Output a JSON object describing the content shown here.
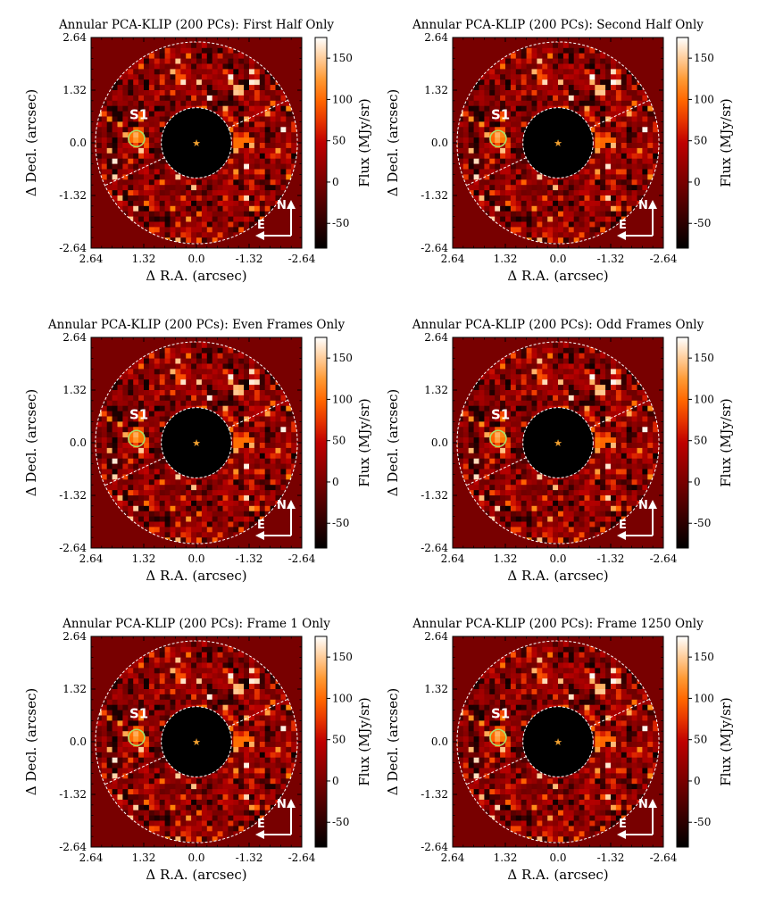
{
  "chart_data": {
    "type": "heatmap",
    "colormap": "gist_heat",
    "xticks": [
      "2.64",
      "1.32",
      "0.0",
      "-1.32",
      "-2.64"
    ],
    "yticks": [
      "2.64",
      "1.32",
      "0.0",
      "-1.32",
      "-2.64"
    ],
    "xlim": [
      2.64,
      -2.64
    ],
    "ylim": [
      -2.64,
      2.64
    ],
    "xlabel": "Δ R.A. (arcsec)",
    "ylabel": "Δ Decl. (arcsec)",
    "colorbar": {
      "label": "Flux (MJy/sr)",
      "range": [
        -80,
        175
      ],
      "ticks": [
        "150",
        "100",
        "50",
        "0",
        "-50"
      ],
      "tick_values": [
        150,
        100,
        50,
        0,
        -50
      ]
    },
    "masks": {
      "inner_radius_arcsec": 0.88,
      "outer_radius_arcsec": 2.53
    },
    "annotations": {
      "source_label": "S1",
      "source_position_arcsec": [
        1.5,
        0.15
      ],
      "source_circle_color": "#a8e06a",
      "star_color": "#f0a030",
      "mask_line_color": "#ffffff",
      "compass_north": "N",
      "compass_east": "E"
    },
    "panels": [
      {
        "title": "Annular PCA-KLIP (200 PCs): First Half Only"
      },
      {
        "title": "Annular PCA-KLIP (200 PCs): Second Half Only"
      },
      {
        "title": "Annular PCA-KLIP (200 PCs): Even Frames Only"
      },
      {
        "title": "Annular PCA-KLIP (200 PCs): Odd Frames Only"
      },
      {
        "title": "Annular PCA-KLIP (200 PCs): Frame 1 Only"
      },
      {
        "title": "Annular PCA-KLIP (200 PCs): Frame 1250 Only"
      }
    ]
  }
}
